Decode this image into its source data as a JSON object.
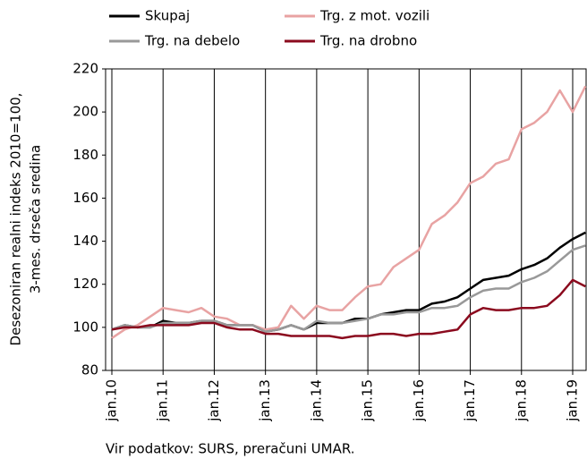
{
  "chart_data": {
    "type": "line",
    "ylabel": [
      "Desezoniran realni indeks 2010=100,",
      "3-mes. drseča sredina"
    ],
    "source": "Vir podatkov: SURS, preračuni UMAR.",
    "categories": [
      "jan.10",
      null,
      null,
      null,
      "jan.11",
      null,
      null,
      null,
      "jan.12",
      null,
      null,
      null,
      "jan.13",
      null,
      null,
      null,
      "jan.14",
      null,
      null,
      null,
      "jan.15",
      null,
      null,
      null,
      "jan.16",
      null,
      null,
      null,
      "jan.17",
      null,
      null,
      null,
      "jan.18",
      null,
      null,
      null,
      "jan.19",
      null
    ],
    "series": [
      {
        "name": "Skupaj",
        "color": "#000000",
        "values": [
          99,
          101,
          100,
          100,
          103,
          102,
          102,
          103,
          103,
          101,
          101,
          101,
          98,
          99,
          101,
          99,
          102,
          102,
          102,
          104,
          104,
          106,
          107,
          108,
          108,
          111,
          112,
          114,
          118,
          122,
          123,
          124,
          127,
          129,
          132,
          137,
          141,
          144
        ]
      },
      {
        "name": "Trg. z mot. vozili",
        "color": "#e8a3a3",
        "values": [
          95,
          99,
          101,
          105,
          109,
          108,
          107,
          109,
          105,
          104,
          101,
          101,
          99,
          100,
          110,
          104,
          110,
          108,
          108,
          114,
          119,
          120,
          128,
          132,
          136,
          148,
          152,
          158,
          167,
          170,
          176,
          178,
          192,
          195,
          200,
          210,
          200,
          212
        ]
      },
      {
        "name": "Trg. na debelo",
        "color": "#999999",
        "values": [
          99,
          101,
          100,
          100,
          102,
          102,
          102,
          103,
          103,
          101,
          101,
          101,
          98,
          99,
          101,
          99,
          103,
          102,
          102,
          103,
          104,
          106,
          106,
          107,
          107,
          109,
          109,
          110,
          114,
          117,
          118,
          118,
          121,
          123,
          126,
          131,
          136,
          138
        ]
      },
      {
        "name": "Trg. na drobno",
        "color": "#8b0a1e",
        "values": [
          99,
          100,
          100,
          101,
          101,
          101,
          101,
          102,
          102,
          100,
          99,
          99,
          97,
          97,
          96,
          96,
          96,
          96,
          95,
          96,
          96,
          97,
          97,
          96,
          97,
          97,
          98,
          99,
          106,
          109,
          108,
          108,
          109,
          109,
          110,
          115,
          122,
          119
        ]
      }
    ],
    "ylim": [
      80,
      220
    ],
    "yticks": [
      80,
      100,
      120,
      140,
      160,
      180,
      200,
      220
    ]
  }
}
